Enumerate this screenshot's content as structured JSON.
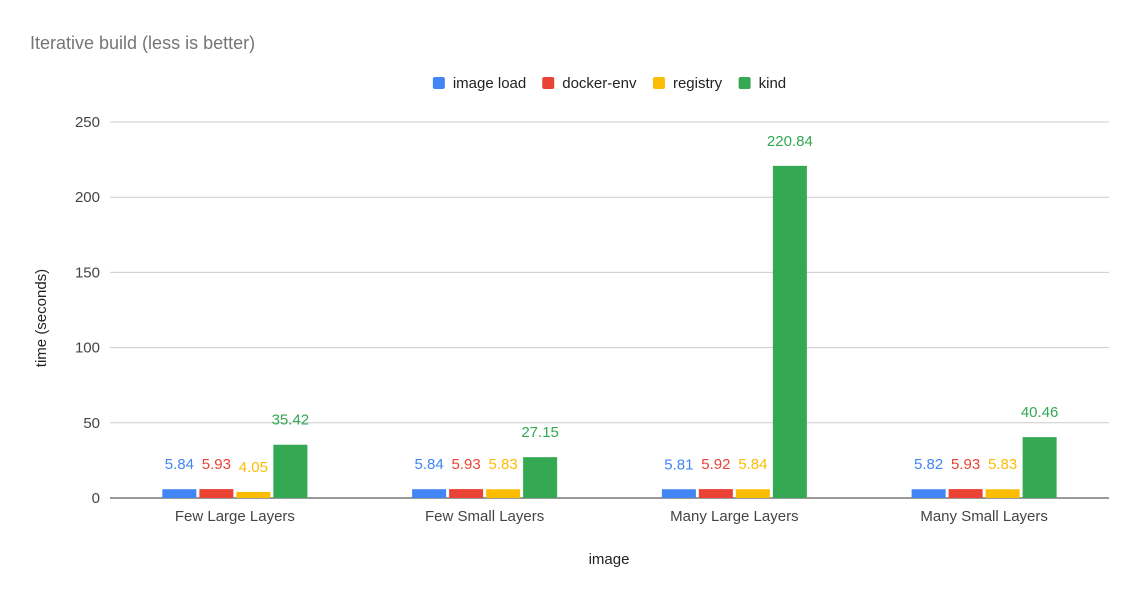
{
  "chart_data": {
    "type": "bar",
    "title": "Iterative build (less is better)",
    "xlabel": "image",
    "ylabel": "time (seconds)",
    "ylim": [
      0,
      250
    ],
    "yticks": [
      0,
      50,
      100,
      150,
      200,
      250
    ],
    "grid": true,
    "legend_position": "top",
    "categories": [
      "Few Large Layers",
      "Few Small Layers",
      "Many Large Layers",
      "Many Small Layers"
    ],
    "series": [
      {
        "name": "image load",
        "color": "#4285f4",
        "values": [
          5.84,
          5.84,
          5.81,
          5.82
        ]
      },
      {
        "name": "docker-env",
        "color": "#ea4335",
        "values": [
          5.93,
          5.93,
          5.92,
          5.93
        ]
      },
      {
        "name": "registry",
        "color": "#fbbc04",
        "values": [
          4.05,
          5.83,
          5.84,
          5.83
        ]
      },
      {
        "name": "kind",
        "color": "#34a853",
        "values": [
          35.42,
          27.15,
          220.84,
          40.46
        ]
      }
    ]
  }
}
